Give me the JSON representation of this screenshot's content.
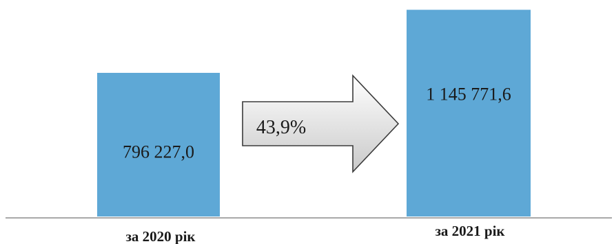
{
  "chart_data": {
    "type": "bar",
    "categories": [
      "за 2020  рік",
      "за 2021 рік"
    ],
    "values": [
      796227.0,
      1145771.6
    ],
    "value_labels": [
      "796 227,0",
      "1 145 771,6"
    ],
    "ylim": [
      0,
      1200000
    ],
    "grid": false,
    "legend": "none",
    "annotation": {
      "shape": "arrow-right",
      "text": "43,9%"
    },
    "colors": {
      "bar": "#5ea8d6",
      "arrow_light": "#ffffff",
      "arrow_dark": "#c9c9c9"
    }
  }
}
